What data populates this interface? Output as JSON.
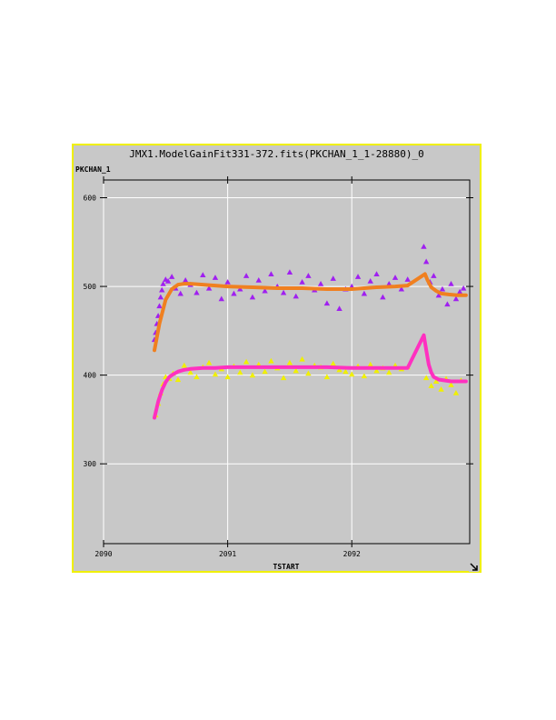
{
  "window": {
    "title": "JMX1.ModelGainFit331-372.fits(PKCHAN_1_1-28880)_0",
    "resize_icon": "resize-corner-icon"
  },
  "chart_data": {
    "type": "scatter",
    "xlabel": "TSTART",
    "ylabel": "PKCHAN_1",
    "xlim": [
      2090.0,
      2092.95
    ],
    "ylim": [
      210,
      620
    ],
    "xticks": [
      2090,
      2091,
      2092
    ],
    "xtick_labels": [
      "2090",
      "2091",
      "2092"
    ],
    "yticks": [
      300,
      400,
      500,
      600
    ],
    "ytick_labels": [
      "300",
      "400",
      "500",
      "600"
    ],
    "grid": true,
    "background": "#c8c8c8",
    "series": [
      {
        "marker": "triangle",
        "color": "#a020f0",
        "x": [
          2090.41,
          2090.42,
          2090.43,
          2090.44,
          2090.45,
          2090.46,
          2090.47,
          2090.48,
          2090.5,
          2090.52,
          2090.55,
          2090.58,
          2090.62,
          2090.66,
          2090.7,
          2090.75,
          2090.8,
          2090.85,
          2090.9,
          2090.95,
          2091.0,
          2091.05,
          2091.1,
          2091.15,
          2091.2,
          2091.25,
          2091.3,
          2091.35,
          2091.4,
          2091.45,
          2091.5,
          2091.55,
          2091.6,
          2091.65,
          2091.7,
          2091.75,
          2091.8,
          2091.85,
          2091.9,
          2091.95,
          2092.0,
          2092.05,
          2092.1,
          2092.15,
          2092.2,
          2092.25,
          2092.3,
          2092.35,
          2092.4,
          2092.45,
          2092.58,
          2092.6,
          2092.63,
          2092.66,
          2092.7,
          2092.73,
          2092.77,
          2092.8,
          2092.84,
          2092.87,
          2092.9
        ],
        "y": [
          440,
          448,
          458,
          467,
          478,
          488,
          496,
          503,
          508,
          506,
          511,
          498,
          492,
          507,
          502,
          493,
          513,
          498,
          510,
          486,
          505,
          492,
          497,
          512,
          488,
          507,
          495,
          514,
          500,
          493,
          516,
          489,
          505,
          512,
          496,
          503,
          481,
          509,
          475,
          497,
          500,
          511,
          492,
          506,
          514,
          488,
          503,
          510,
          497,
          508,
          545,
          528,
          505,
          512,
          490,
          497,
          480,
          503,
          486,
          494,
          498
        ]
      },
      {
        "marker": "triangle",
        "color": "#f0f000",
        "x": [
          2090.42,
          2090.44,
          2090.46,
          2090.48,
          2090.5,
          2090.53,
          2090.56,
          2090.6,
          2090.65,
          2090.7,
          2090.75,
          2090.8,
          2090.85,
          2090.9,
          2090.95,
          2091.0,
          2091.05,
          2091.1,
          2091.15,
          2091.2,
          2091.25,
          2091.3,
          2091.35,
          2091.4,
          2091.45,
          2091.5,
          2091.55,
          2091.6,
          2091.65,
          2091.7,
          2091.75,
          2091.8,
          2091.85,
          2091.9,
          2091.95,
          2092.0,
          2092.05,
          2092.1,
          2092.15,
          2092.2,
          2092.25,
          2092.3,
          2092.35,
          2092.4,
          2092.45,
          2092.6,
          2092.64,
          2092.68,
          2092.72,
          2092.76,
          2092.8,
          2092.84,
          2092.88
        ],
        "y": [
          355,
          368,
          380,
          390,
          398,
          396,
          402,
          395,
          411,
          403,
          398,
          409,
          414,
          401,
          407,
          398,
          410,
          403,
          415,
          400,
          412,
          404,
          416,
          408,
          397,
          414,
          405,
          418,
          402,
          411,
          409,
          398,
          413,
          406,
          404,
          401,
          410,
          399,
          412,
          405,
          408,
          403,
          411,
          407,
          409,
          397,
          388,
          393,
          384,
          396,
          389,
          380,
          394
        ]
      },
      {
        "marker": "line",
        "color": "#f08020",
        "name": "",
        "x": [
          2090.41,
          2090.45,
          2090.5,
          2090.55,
          2090.6,
          2090.65,
          2090.7,
          2090.8,
          2090.9,
          2091.0,
          2091.2,
          2091.4,
          2091.6,
          2091.8,
          2092.0,
          2092.2,
          2092.35,
          2092.45,
          2092.59,
          2092.61,
          2092.64,
          2092.68,
          2092.72,
          2092.78,
          2092.85,
          2092.92
        ],
        "y": [
          428,
          458,
          485,
          497,
          502,
          503,
          503,
          502,
          501,
          500,
          499,
          498,
          498,
          497,
          497,
          499,
          500,
          501,
          514,
          507,
          499,
          495,
          492,
          491,
          490,
          490
        ]
      },
      {
        "marker": "line",
        "color": "#ff30c0",
        "name": "",
        "x": [
          2090.41,
          2090.44,
          2090.47,
          2090.5,
          2090.53,
          2090.56,
          2090.6,
          2090.65,
          2090.7,
          2090.8,
          2090.9,
          2091.0,
          2091.2,
          2091.4,
          2091.6,
          2091.8,
          2092.0,
          2092.2,
          2092.35,
          2092.45,
          2092.58,
          2092.6,
          2092.62,
          2092.64,
          2092.66,
          2092.7,
          2092.75,
          2092.8,
          2092.92
        ],
        "y": [
          352,
          370,
          383,
          392,
          398,
          401,
          404,
          406,
          407,
          408,
          408,
          409,
          409,
          409,
          409,
          409,
          408,
          408,
          408,
          408,
          445,
          428,
          412,
          403,
          398,
          395,
          394,
          393,
          393
        ]
      }
    ]
  }
}
